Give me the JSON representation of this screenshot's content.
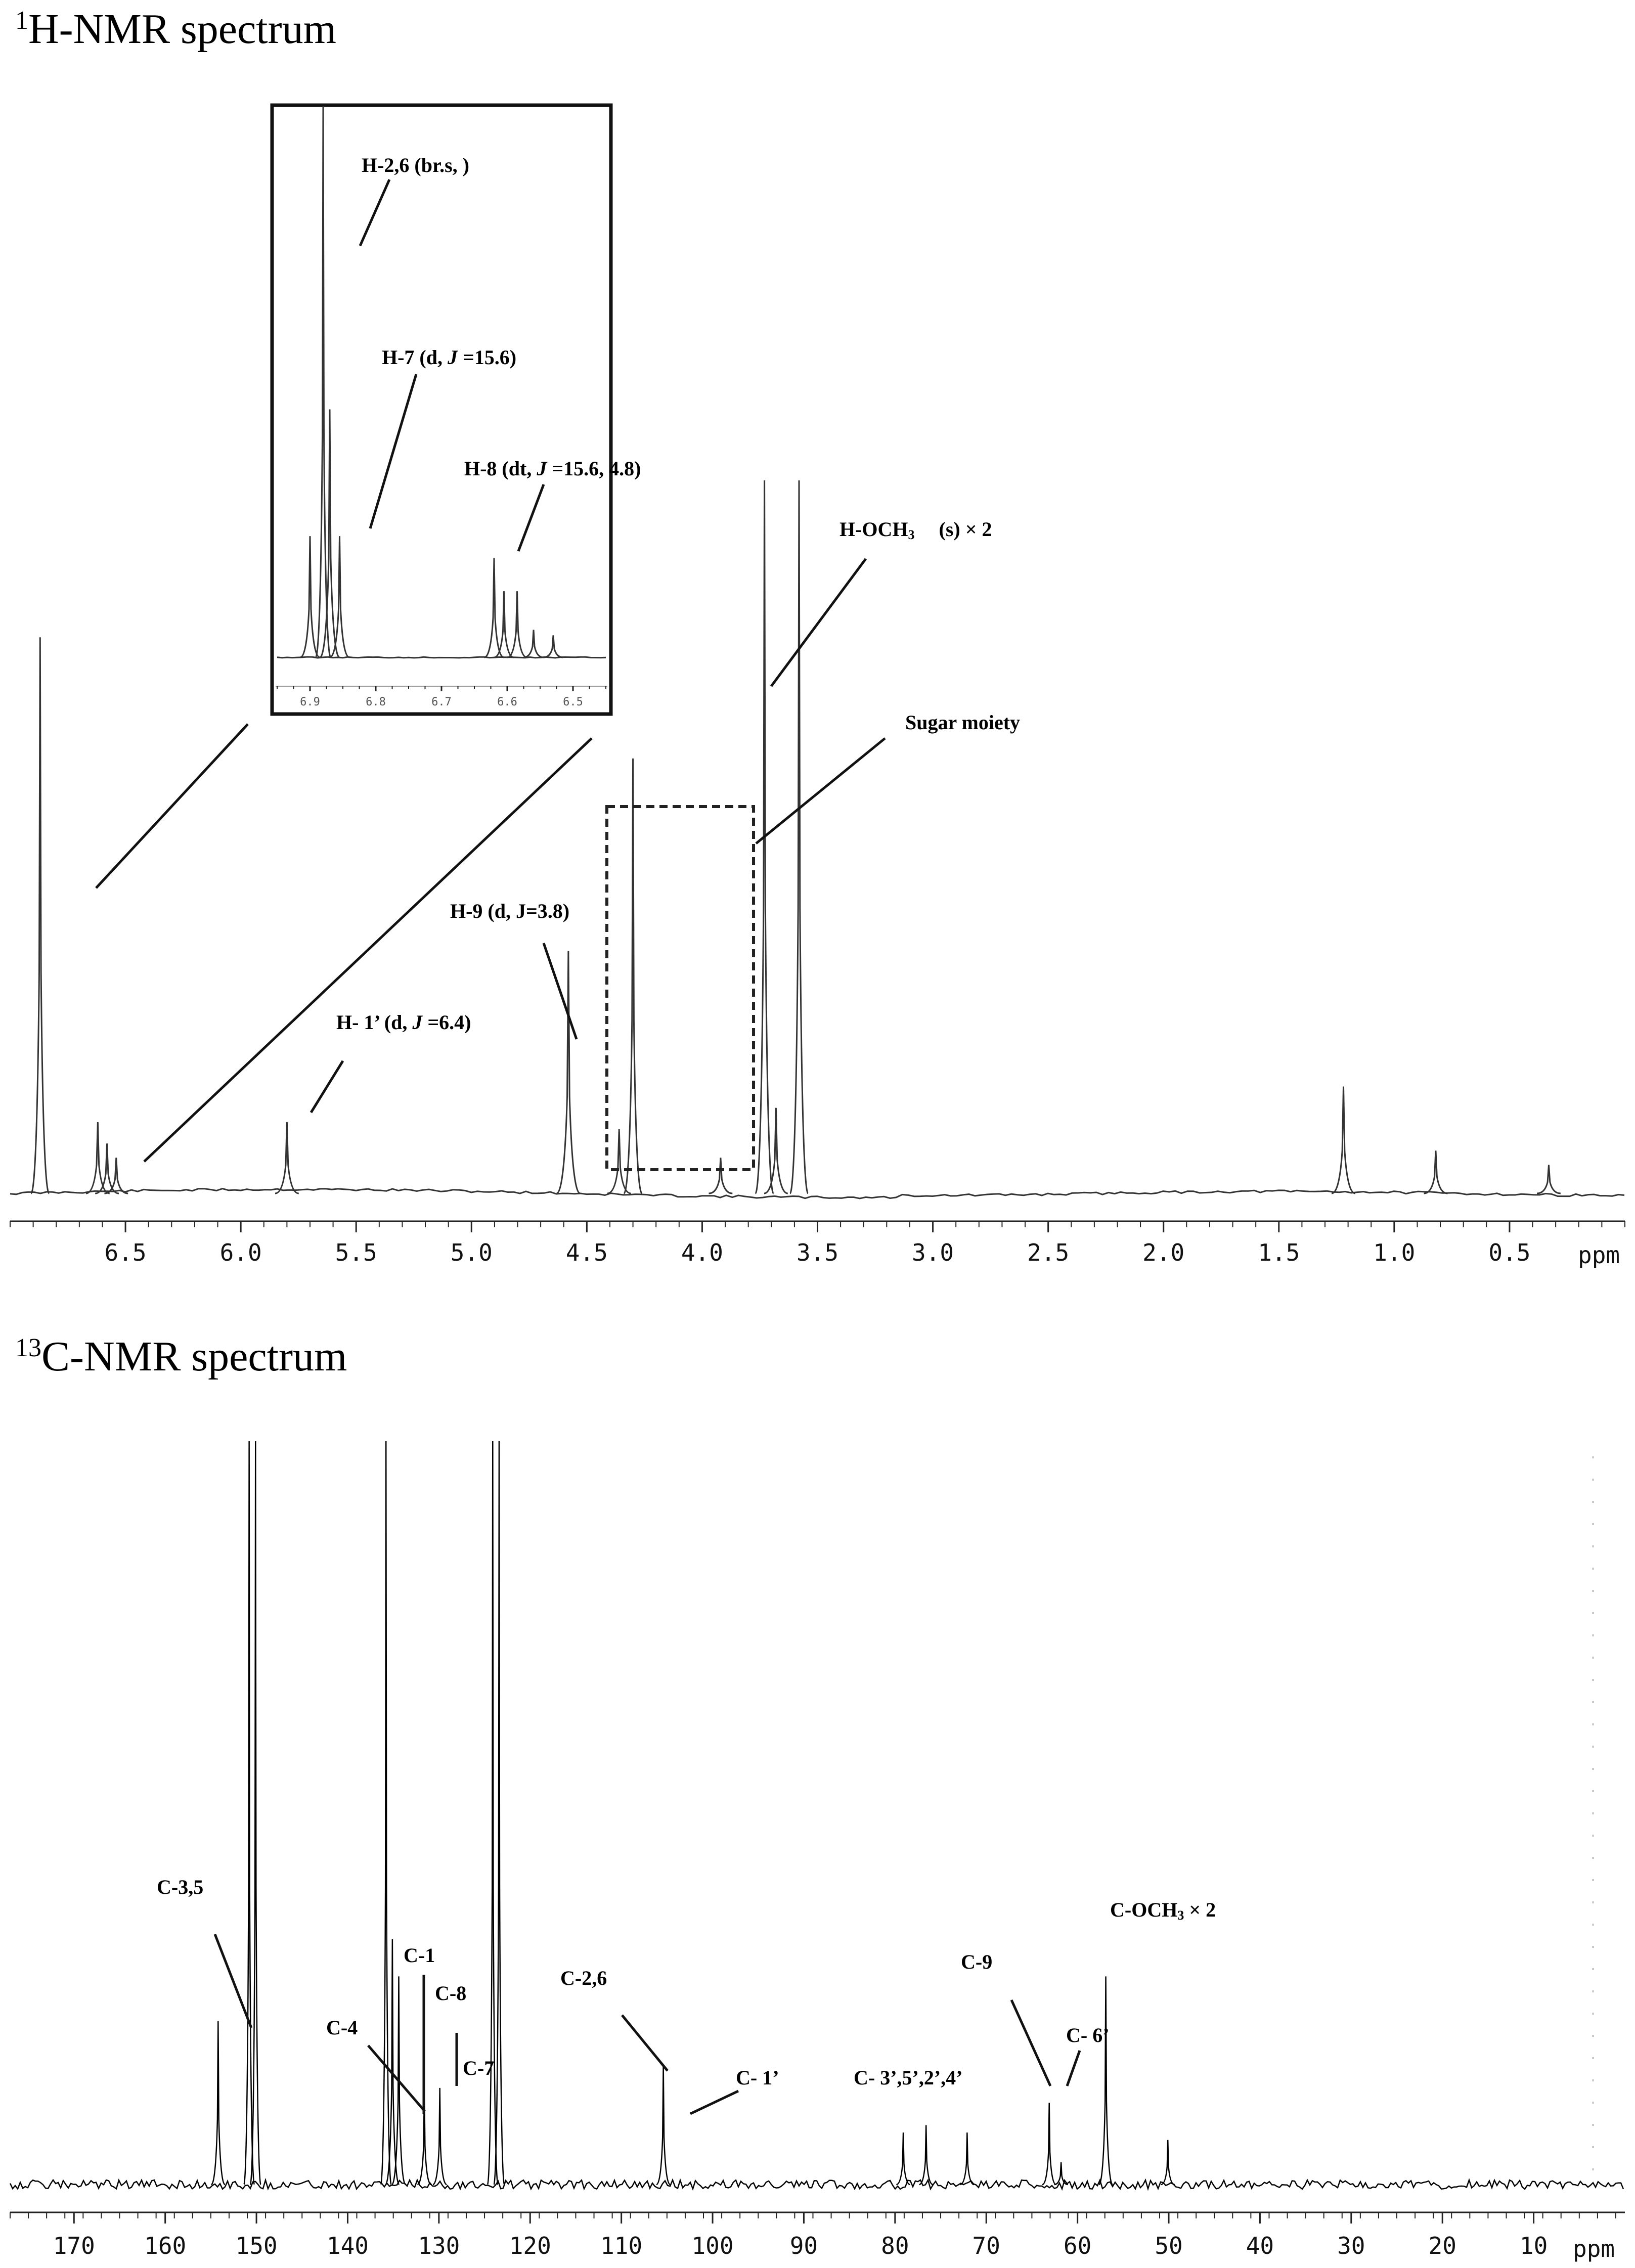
{
  "chart_data": [
    {
      "type": "line",
      "title_sup": "1",
      "title_main": "H-NMR spectrum",
      "xlabel": "ppm",
      "x_reversed": true,
      "xlim": [
        7.0,
        0.0
      ],
      "x_ticks": [
        "6.5",
        "6.0",
        "5.5",
        "5.0",
        "4.5",
        "4.0",
        "3.5",
        "3.0",
        "2.5",
        "2.0",
        "1.5",
        "1.0",
        "0.5"
      ],
      "x_tick_values": [
        6.5,
        6.0,
        5.5,
        5.0,
        4.5,
        4.0,
        3.5,
        3.0,
        2.5,
        2.0,
        1.5,
        1.0,
        0.5
      ],
      "grid": false,
      "peaks": [
        {
          "x": 6.87,
          "y": 0.78
        },
        {
          "x": 6.62,
          "y": 0.1
        },
        {
          "x": 6.58,
          "y": 0.07
        },
        {
          "x": 6.54,
          "y": 0.05
        },
        {
          "x": 5.8,
          "y": 0.1
        },
        {
          "x": 4.58,
          "y": 0.34
        },
        {
          "x": 4.36,
          "y": 0.09
        },
        {
          "x": 4.3,
          "y": 0.61
        },
        {
          "x": 3.92,
          "y": 0.05
        },
        {
          "x": 3.73,
          "y": 1.0
        },
        {
          "x": 3.68,
          "y": 0.12
        },
        {
          "x": 3.58,
          "y": 1.0
        },
        {
          "x": 1.22,
          "y": 0.15
        },
        {
          "x": 0.82,
          "y": 0.06
        },
        {
          "x": 0.33,
          "y": 0.04
        }
      ],
      "annotations": [
        {
          "text": "H-OCH",
          "sub": "3",
          "rest": "(s) × 2"
        },
        {
          "text": "Sugar moiety"
        },
        {
          "text": "H-9 (d, J=3.8)"
        },
        {
          "text": "H- 1’ (d, ",
          "italic": "J",
          "rest": " =6.4)"
        }
      ],
      "inset": {
        "x_ticks": [
          "6.9",
          "6.8",
          "6.7",
          "6.6",
          "6.5"
        ],
        "x_tick_values": [
          6.9,
          6.8,
          6.7,
          6.6,
          6.5
        ],
        "xlim": [
          6.95,
          6.45
        ],
        "peaks": [
          {
            "x": 6.88,
            "y": 1.0
          },
          {
            "x": 6.87,
            "y": 0.45
          },
          {
            "x": 6.9,
            "y": 0.22
          },
          {
            "x": 6.855,
            "y": 0.22
          },
          {
            "x": 6.62,
            "y": 0.18
          },
          {
            "x": 6.605,
            "y": 0.12
          },
          {
            "x": 6.585,
            "y": 0.12
          },
          {
            "x": 6.56,
            "y": 0.05
          },
          {
            "x": 6.53,
            "y": 0.04
          }
        ],
        "annotations": [
          {
            "text": "H-2,6 (br.s, )"
          },
          {
            "text": "H-7 (d, ",
            "italic": "J",
            "rest": " =15.6)"
          },
          {
            "text": "H-8 (dt, ",
            "italic": "J",
            "rest": " =15.6, 4.8)"
          }
        ]
      }
    },
    {
      "type": "line",
      "title_sup": "13",
      "title_main": "C-NMR spectrum",
      "xlabel": "ppm",
      "x_reversed": true,
      "xlim": [
        177,
        0
      ],
      "x_ticks": [
        "170",
        "160",
        "150",
        "140",
        "130",
        "120",
        "110",
        "100",
        "90",
        "80",
        "70",
        "60",
        "50",
        "40",
        "30",
        "20",
        "10"
      ],
      "x_tick_values": [
        170,
        160,
        150,
        140,
        130,
        120,
        110,
        100,
        90,
        80,
        70,
        60,
        50,
        40,
        30,
        20,
        10
      ],
      "grid": false,
      "peaks": [
        {
          "x": 154.2,
          "y": 0.22
        },
        {
          "x": 150.8,
          "y": 1.0
        },
        {
          "x": 150.1,
          "y": 1.0
        },
        {
          "x": 135.8,
          "y": 1.0
        },
        {
          "x": 135.1,
          "y": 0.33
        },
        {
          "x": 134.4,
          "y": 0.28
        },
        {
          "x": 131.6,
          "y": 0.13
        },
        {
          "x": 129.9,
          "y": 0.13
        },
        {
          "x": 124.1,
          "y": 1.0
        },
        {
          "x": 123.4,
          "y": 1.0
        },
        {
          "x": 105.4,
          "y": 0.16
        },
        {
          "x": 79.1,
          "y": 0.07
        },
        {
          "x": 76.6,
          "y": 0.08
        },
        {
          "x": 72.1,
          "y": 0.07
        },
        {
          "x": 63.1,
          "y": 0.11
        },
        {
          "x": 61.8,
          "y": 0.03
        },
        {
          "x": 56.9,
          "y": 0.28
        },
        {
          "x": 50.1,
          "y": 0.06
        }
      ],
      "annotations": [
        {
          "text": "C-3,5"
        },
        {
          "text": "C-1"
        },
        {
          "text": "C-8"
        },
        {
          "text": "C-4"
        },
        {
          "text": "C-7"
        },
        {
          "text": "C-2,6"
        },
        {
          "text": "C- 1’"
        },
        {
          "text": "C- 3’,5’,2’,4’"
        },
        {
          "text": "C-9"
        },
        {
          "text": "C- 6’"
        },
        {
          "text": "C-OCH",
          "sub": "3",
          "rest": " × 2"
        }
      ]
    }
  ]
}
